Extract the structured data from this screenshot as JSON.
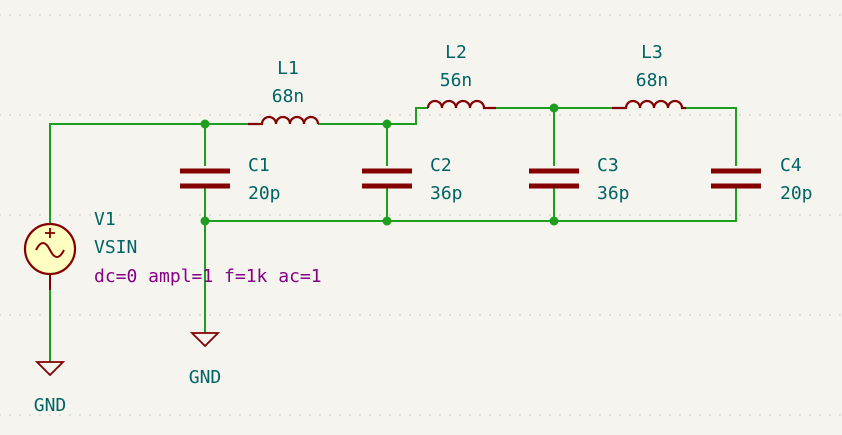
{
  "components": {
    "L1": {
      "ref": "L1",
      "value": "68n"
    },
    "L2": {
      "ref": "L2",
      "value": "56n"
    },
    "L3": {
      "ref": "L3",
      "value": "68n"
    },
    "C1": {
      "ref": "C1",
      "value": "20p"
    },
    "C2": {
      "ref": "C2",
      "value": "36p"
    },
    "C3": {
      "ref": "C3",
      "value": "36p"
    },
    "C4": {
      "ref": "C4",
      "value": "20p"
    },
    "V1": {
      "ref": "V1",
      "value": "VSIN",
      "params": "dc=0 ampl=1 f=1k ac=1"
    }
  },
  "power": {
    "gnd1": {
      "label": "GND"
    },
    "gnd2": {
      "label": "GND"
    }
  },
  "colors": {
    "background": "#f5f4ef",
    "wire": "#1e9e1e",
    "component": "#840000",
    "label": "#006464",
    "field": "#840084",
    "source_fill": "#ffffc2"
  }
}
